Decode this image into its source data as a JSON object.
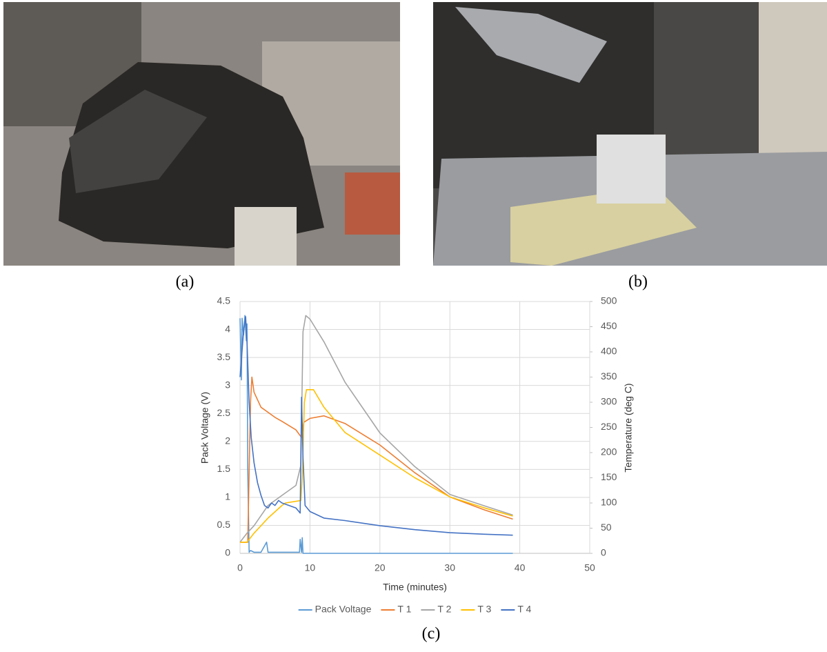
{
  "figure": {
    "panel_labels": [
      "(a)",
      "(b)",
      "(c)"
    ]
  },
  "chart_data": {
    "type": "line",
    "xlabel": "Time (minutes)",
    "ylabel": "Pack Voltage (V)",
    "y2label": "Temperature (deg C)",
    "xlim": [
      0,
      50
    ],
    "xticks": [
      0,
      10,
      20,
      30,
      40,
      50
    ],
    "ylim": [
      0,
      4.5
    ],
    "yticks": [
      0,
      0.5,
      1,
      1.5,
      2,
      2.5,
      3,
      3.5,
      4,
      4.5
    ],
    "y2lim": [
      0,
      500
    ],
    "y2ticks": [
      0,
      50,
      100,
      150,
      200,
      250,
      300,
      350,
      400,
      450,
      500
    ],
    "grid": true,
    "legend": "bottom",
    "series": [
      {
        "name": "Pack Voltage",
        "color": "#5b9bd5",
        "x": [
          0,
          0.2,
          0.3,
          0.5,
          0.7,
          0.9,
          1.0,
          1.1,
          1.3,
          1.5,
          2,
          3,
          3.8,
          4,
          8.5,
          8.6,
          8.8,
          8.9,
          9,
          39
        ],
        "values": [
          4.2,
          3.1,
          4.2,
          3.9,
          4.25,
          3.8,
          4.1,
          1.5,
          0.02,
          0.05,
          0.02,
          0.02,
          0.2,
          0.02,
          0.02,
          0.25,
          0.02,
          0.28,
          0,
          0
        ]
      },
      {
        "name": "T 1",
        "color": "#ed7d31",
        "axis": "y2",
        "x": [
          0,
          1.1,
          1.5,
          1.7,
          2,
          3,
          5,
          6,
          8,
          8.8,
          9.1,
          10,
          12,
          15,
          20,
          25,
          30,
          35,
          39
        ],
        "values": [
          22,
          22,
          300,
          350,
          320,
          290,
          270,
          262,
          245,
          230,
          260,
          268,
          273,
          258,
          215,
          160,
          112,
          86,
          68
        ]
      },
      {
        "name": "T 2",
        "color": "#a5a5a5",
        "axis": "y2",
        "x": [
          0,
          1,
          2,
          4,
          6,
          8,
          8.7,
          9,
          9.4,
          10,
          12,
          15,
          20,
          25,
          30,
          35,
          39
        ],
        "values": [
          22,
          40,
          55,
          95,
          115,
          135,
          175,
          440,
          472,
          465,
          420,
          340,
          239,
          172,
          117,
          94,
          76
        ]
      },
      {
        "name": "T 3",
        "color": "#ffc000",
        "axis": "y2",
        "x": [
          0,
          1,
          2,
          4,
          6,
          6.5,
          8.7,
          8.9,
          9.2,
          9.5,
          10.5,
          12,
          15,
          20,
          25,
          30,
          35,
          39
        ],
        "values": [
          22,
          22,
          40,
          70,
          95,
          100,
          105,
          150,
          300,
          325,
          325,
          290,
          240,
          195,
          150,
          112,
          90,
          74
        ]
      },
      {
        "name": "T 4",
        "color": "#4472c4",
        "axis": "y2",
        "x": [
          0,
          0.5,
          0.8,
          1.0,
          1.3,
          1.6,
          2,
          2.5,
          3,
          3.5,
          4,
          4.5,
          5,
          5.5,
          6,
          7,
          8,
          8.6,
          8.8,
          9.0,
          9.3,
          10,
          12,
          15,
          20,
          25,
          30,
          35,
          39
        ],
        "values": [
          350,
          440,
          470,
          420,
          300,
          230,
          180,
          140,
          115,
          95,
          90,
          100,
          95,
          105,
          100,
          95,
          90,
          80,
          310,
          190,
          95,
          83,
          70,
          65,
          55,
          47,
          41,
          38,
          36
        ]
      }
    ]
  }
}
